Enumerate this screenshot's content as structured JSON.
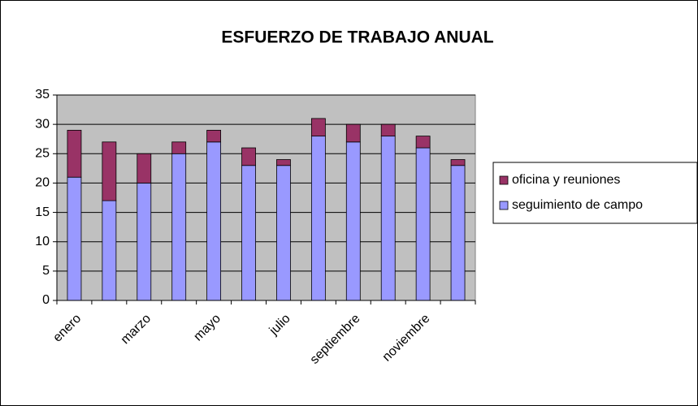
{
  "chart_data": {
    "type": "stacked_bar",
    "title": "ESFUERZO DE TRABAJO ANUAL",
    "categories": [
      "enero",
      null,
      "marzo",
      null,
      "mayo",
      null,
      "julio",
      null,
      "septiembre",
      null,
      "noviembre",
      null
    ],
    "series": [
      {
        "name": "seguimiento de campo",
        "color": "#9999ff",
        "values": [
          21,
          17,
          20,
          25,
          27,
          23,
          23,
          28,
          27,
          28,
          26,
          23
        ]
      },
      {
        "name": "oficina y reuniones",
        "color": "#993366",
        "values": [
          8,
          10,
          5,
          2,
          2,
          3,
          1,
          3,
          3,
          2,
          2,
          1
        ]
      }
    ],
    "ylim": [
      0,
      35
    ],
    "yticks": [
      0,
      5,
      10,
      15,
      20,
      25,
      30,
      35
    ],
    "grid": true,
    "legend": "right",
    "plot_background": "#c0c0c0"
  }
}
